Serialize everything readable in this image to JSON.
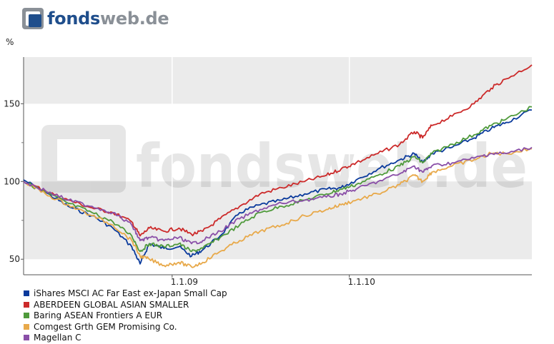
{
  "brand": {
    "name_part1": "fonds",
    "name_part2": "web.de",
    "color_dark": "#1f4e8c",
    "color_gray": "#8a9097",
    "watermark": "fondsweb.de"
  },
  "chart_data": {
    "type": "line",
    "ylabel": "%",
    "xlabel": "",
    "ylim": [
      40,
      180
    ],
    "xlim": [
      "2008-03-01",
      "2011-01-12"
    ],
    "y_ticks": [
      50,
      100,
      150
    ],
    "x_ticks": [
      {
        "date": "2009-01-01",
        "label": "1.1.09"
      },
      {
        "date": "2010-01-01",
        "label": "1.1.10"
      }
    ],
    "background_bands": "alternating gray/white between major y ticks",
    "grid": true,
    "legend_position": "bottom",
    "series": [
      {
        "name": "iShares MSCI AC Far East ex-Japan Small Cap",
        "color": "#0a3a9c",
        "points": [
          [
            "2008-03-01",
            101
          ],
          [
            "2008-04-15",
            93
          ],
          [
            "2008-06-01",
            84
          ],
          [
            "2008-07-20",
            78
          ],
          [
            "2008-09-01",
            70
          ],
          [
            "2008-10-10",
            58
          ],
          [
            "2008-10-27",
            47
          ],
          [
            "2008-11-15",
            60
          ],
          [
            "2008-12-15",
            57
          ],
          [
            "2009-01-15",
            58
          ],
          [
            "2009-02-10",
            52
          ],
          [
            "2009-03-05",
            56
          ],
          [
            "2009-04-10",
            65
          ],
          [
            "2009-05-20",
            80
          ],
          [
            "2009-07-01",
            85
          ],
          [
            "2009-08-15",
            88
          ],
          [
            "2009-10-01",
            92
          ],
          [
            "2009-11-15",
            95
          ],
          [
            "2009-12-15",
            96
          ],
          [
            "2010-01-15",
            101
          ],
          [
            "2010-03-01",
            108
          ],
          [
            "2010-04-15",
            114
          ],
          [
            "2010-05-15",
            118
          ],
          [
            "2010-06-01",
            112
          ],
          [
            "2010-06-20",
            118
          ],
          [
            "2010-08-01",
            122
          ],
          [
            "2010-09-15",
            128
          ],
          [
            "2010-10-20",
            134
          ],
          [
            "2010-11-20",
            138
          ],
          [
            "2011-01-12",
            146
          ]
        ]
      },
      {
        "name": "ABERDEEN GLOBAL ASIAN SMALLER",
        "color": "#cc2a2a",
        "points": [
          [
            "2008-03-01",
            100
          ],
          [
            "2008-04-15",
            94
          ],
          [
            "2008-06-01",
            88
          ],
          [
            "2008-07-20",
            83
          ],
          [
            "2008-09-01",
            80
          ],
          [
            "2008-10-10",
            74
          ],
          [
            "2008-10-27",
            65
          ],
          [
            "2008-11-15",
            70
          ],
          [
            "2008-12-15",
            68
          ],
          [
            "2009-01-15",
            70
          ],
          [
            "2009-02-10",
            66
          ],
          [
            "2009-03-05",
            68
          ],
          [
            "2009-04-10",
            76
          ],
          [
            "2009-05-20",
            84
          ],
          [
            "2009-07-01",
            92
          ],
          [
            "2009-08-15",
            96
          ],
          [
            "2009-10-01",
            100
          ],
          [
            "2009-11-15",
            104
          ],
          [
            "2009-12-15",
            108
          ],
          [
            "2010-01-15",
            112
          ],
          [
            "2010-03-01",
            118
          ],
          [
            "2010-04-15",
            124
          ],
          [
            "2010-05-15",
            132
          ],
          [
            "2010-06-01",
            128
          ],
          [
            "2010-06-20",
            136
          ],
          [
            "2010-08-01",
            142
          ],
          [
            "2010-09-15",
            150
          ],
          [
            "2010-10-20",
            160
          ],
          [
            "2010-11-20",
            166
          ],
          [
            "2011-01-12",
            175
          ]
        ]
      },
      {
        "name": "Baring ASEAN Frontiers A EUR",
        "color": "#4f9a3b",
        "points": [
          [
            "2008-03-01",
            100
          ],
          [
            "2008-04-15",
            93
          ],
          [
            "2008-06-01",
            86
          ],
          [
            "2008-07-20",
            80
          ],
          [
            "2008-09-01",
            74
          ],
          [
            "2008-10-10",
            65
          ],
          [
            "2008-10-27",
            55
          ],
          [
            "2008-11-15",
            60
          ],
          [
            "2008-12-15",
            58
          ],
          [
            "2009-01-15",
            60
          ],
          [
            "2009-02-10",
            55
          ],
          [
            "2009-03-05",
            57
          ],
          [
            "2009-04-10",
            64
          ],
          [
            "2009-05-20",
            72
          ],
          [
            "2009-07-01",
            80
          ],
          [
            "2009-08-15",
            84
          ],
          [
            "2009-10-01",
            88
          ],
          [
            "2009-11-15",
            92
          ],
          [
            "2009-12-15",
            95
          ],
          [
            "2010-01-15",
            98
          ],
          [
            "2010-03-01",
            104
          ],
          [
            "2010-04-15",
            110
          ],
          [
            "2010-05-15",
            116
          ],
          [
            "2010-06-01",
            112
          ],
          [
            "2010-06-20",
            118
          ],
          [
            "2010-08-01",
            124
          ],
          [
            "2010-09-15",
            130
          ],
          [
            "2010-10-20",
            136
          ],
          [
            "2010-11-20",
            140
          ],
          [
            "2011-01-12",
            148
          ]
        ]
      },
      {
        "name": "Comgest Grth GEM Promising Co.",
        "color": "#e8a94a",
        "points": [
          [
            "2008-03-01",
            100
          ],
          [
            "2008-04-15",
            92
          ],
          [
            "2008-06-01",
            85
          ],
          [
            "2008-07-20",
            78
          ],
          [
            "2008-09-01",
            72
          ],
          [
            "2008-10-10",
            62
          ],
          [
            "2008-10-27",
            52
          ],
          [
            "2008-11-15",
            50
          ],
          [
            "2008-12-15",
            46
          ],
          [
            "2009-01-15",
            48
          ],
          [
            "2009-02-10",
            45
          ],
          [
            "2009-03-05",
            48
          ],
          [
            "2009-04-10",
            55
          ],
          [
            "2009-05-20",
            62
          ],
          [
            "2009-07-01",
            68
          ],
          [
            "2009-08-15",
            72
          ],
          [
            "2009-10-01",
            78
          ],
          [
            "2009-11-15",
            82
          ],
          [
            "2009-12-15",
            85
          ],
          [
            "2010-01-15",
            88
          ],
          [
            "2010-03-01",
            92
          ],
          [
            "2010-04-15",
            98
          ],
          [
            "2010-05-15",
            104
          ],
          [
            "2010-06-01",
            100
          ],
          [
            "2010-06-20",
            106
          ],
          [
            "2010-08-01",
            110
          ],
          [
            "2010-09-15",
            114
          ],
          [
            "2010-10-20",
            118
          ],
          [
            "2010-11-20",
            118
          ],
          [
            "2011-01-12",
            121
          ]
        ]
      },
      {
        "name": "Magellan C",
        "color": "#8a4fa8",
        "points": [
          [
            "2008-03-01",
            100
          ],
          [
            "2008-04-15",
            94
          ],
          [
            "2008-06-01",
            88
          ],
          [
            "2008-07-20",
            84
          ],
          [
            "2008-09-01",
            80
          ],
          [
            "2008-10-10",
            72
          ],
          [
            "2008-10-27",
            62
          ],
          [
            "2008-11-15",
            64
          ],
          [
            "2008-12-15",
            62
          ],
          [
            "2009-01-15",
            64
          ],
          [
            "2009-02-10",
            60
          ],
          [
            "2009-03-05",
            62
          ],
          [
            "2009-04-10",
            68
          ],
          [
            "2009-05-20",
            76
          ],
          [
            "2009-07-01",
            82
          ],
          [
            "2009-08-15",
            86
          ],
          [
            "2009-10-01",
            88
          ],
          [
            "2009-11-15",
            90
          ],
          [
            "2009-12-15",
            92
          ],
          [
            "2010-01-15",
            95
          ],
          [
            "2010-03-01",
            100
          ],
          [
            "2010-04-15",
            105
          ],
          [
            "2010-05-15",
            110
          ],
          [
            "2010-06-01",
            106
          ],
          [
            "2010-06-20",
            110
          ],
          [
            "2010-08-01",
            112
          ],
          [
            "2010-09-15",
            115
          ],
          [
            "2010-10-20",
            118
          ],
          [
            "2010-11-20",
            118
          ],
          [
            "2011-01-12",
            122
          ]
        ]
      }
    ]
  }
}
